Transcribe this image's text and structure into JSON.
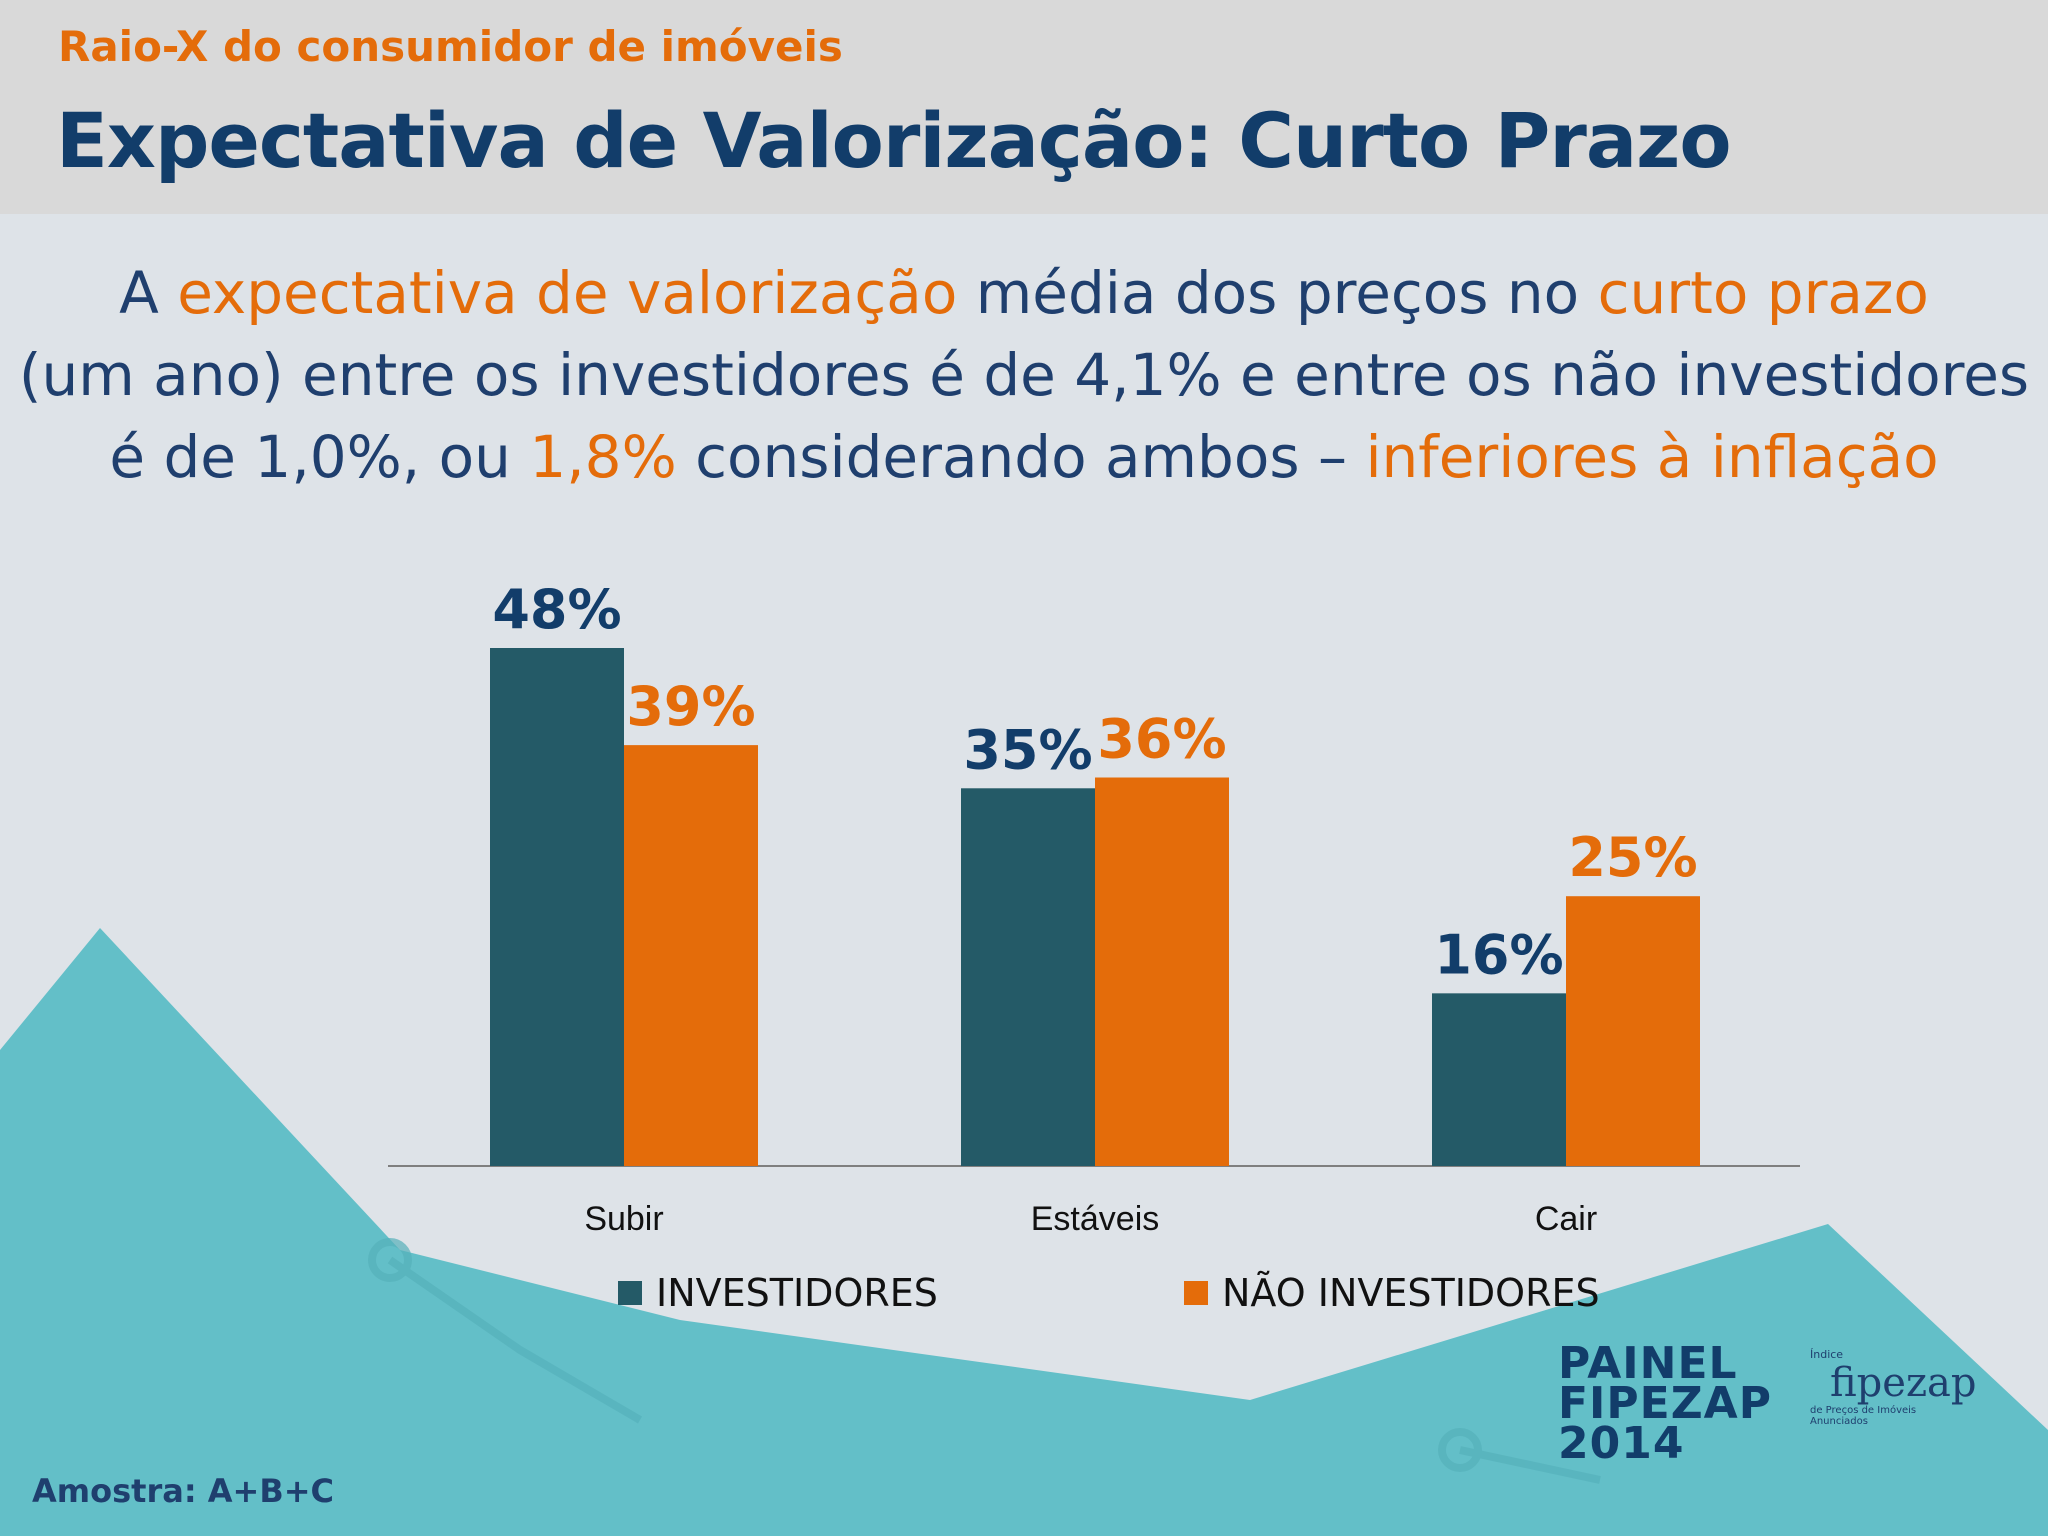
{
  "header": {
    "kicker": "Raio-X do consumidor de imóveis",
    "title": "Expectativa de Valorização: Curto Prazo"
  },
  "lead": {
    "l1a": "A ",
    "l1b": "expectativa de valorização",
    "l1c": " média dos preços no ",
    "l1d": "curto prazo",
    "l2": "(um ano) entre os investidores é de 4,1% e entre os não investidores",
    "l3a": "é de 1,0%, ou ",
    "l3b": "1,8%",
    "l3c": " considerando ambos – ",
    "l3d": "inferiores à inflação"
  },
  "chart_data": {
    "type": "bar",
    "categories": [
      "Subir",
      "Estáveis",
      "Cair"
    ],
    "series": [
      {
        "name": "INVESTIDORES",
        "values": [
          48,
          35,
          16
        ],
        "labels": [
          "48%",
          "35%",
          "16%"
        ]
      },
      {
        "name": "NÃO INVESTIDORES",
        "values": [
          39,
          36,
          25
        ],
        "labels": [
          "39%",
          "36%",
          "25%"
        ]
      }
    ],
    "ylim": [
      0,
      48
    ],
    "grid": false,
    "legend": "bottom"
  },
  "colors": {
    "investidores": "#245a67",
    "nao_investidores": "#e46c0a",
    "investidores_label": "#123d6a",
    "nao_investidores_label": "#e46c0a"
  },
  "footer": {
    "amostra": "Amostra: A+B+C",
    "painel_l1": "PAINEL",
    "painel_l2": "FIPEZAP",
    "painel_l3": "2014",
    "fz_small": "Índice",
    "fz_logo": "fipezap",
    "fz_sub": "de Preços de Imóveis Anunciados"
  }
}
